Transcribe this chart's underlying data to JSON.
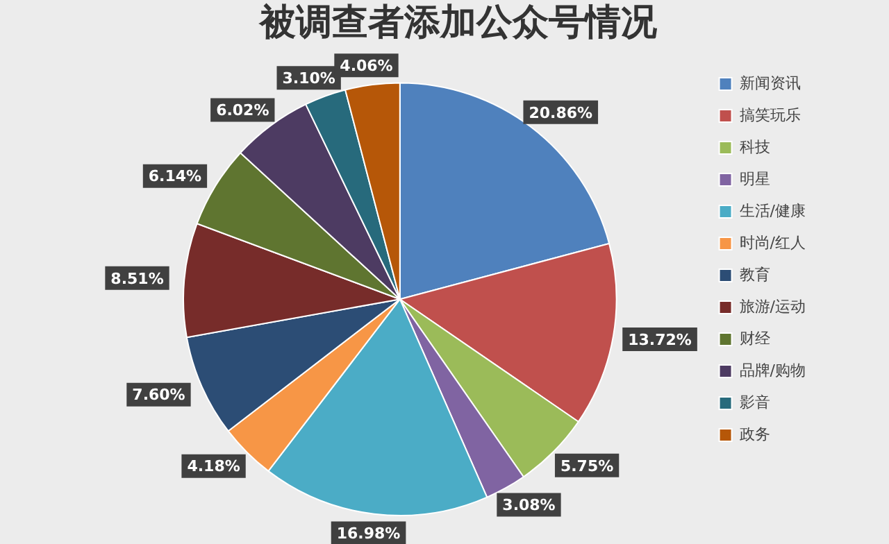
{
  "chart_data": {
    "type": "pie",
    "title": "被调查者添加公众号情况",
    "categories": [
      "新闻资讯",
      "搞笑玩乐",
      "科技",
      "明星",
      "生活/健康",
      "时尚/红人",
      "教育",
      "旅游/运动",
      "财经",
      "品牌/购物",
      "影音",
      "政务"
    ],
    "values": [
      20.86,
      13.72,
      5.75,
      3.08,
      16.98,
      4.18,
      7.6,
      8.51,
      6.14,
      6.02,
      3.1,
      4.06
    ],
    "value_labels": [
      "20.86%",
      "13.72%",
      "5.75%",
      "3.08%",
      "16.98%",
      "4.18%",
      "7.60%",
      "8.51%",
      "6.14%",
      "6.02%",
      "3.10%",
      "4.06%"
    ],
    "colors": [
      "#4f81bd",
      "#c0504d",
      "#9bbb59",
      "#8064a2",
      "#4bacc6",
      "#f79646",
      "#2c4d75",
      "#772c2a",
      "#5f7530",
      "#4d3b62",
      "#276a7c",
      "#b65708"
    ],
    "legend": "right"
  }
}
